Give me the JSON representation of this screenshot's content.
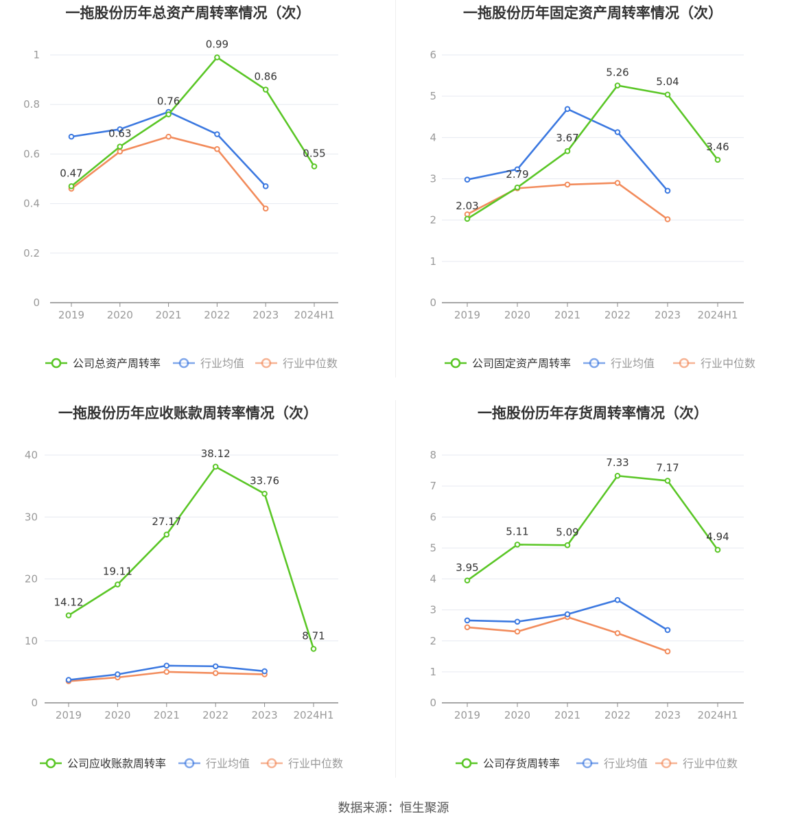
{
  "source": "数据来源：恒生聚源",
  "colors": {
    "company": "#5ac626",
    "avg": "#3b78e0",
    "median": "#f28b5b",
    "axis": "#888888",
    "grid": "#e6e9f0",
    "label": "#333333",
    "title": "#333333"
  },
  "legend_labels": {
    "avg": "行业均值",
    "median": "行业中位数"
  },
  "chart_data": [
    {
      "type": "line",
      "title": "一拖股份历年总资产周转率情况（次）",
      "categories": [
        "2019",
        "2020",
        "2021",
        "2022",
        "2023",
        "2024H1"
      ],
      "y_ticks": [
        "0",
        "0.2",
        "0.4",
        "0.6",
        "0.8",
        "1"
      ],
      "ylim": [
        0,
        1
      ],
      "series": [
        {
          "key": "company",
          "name": "公司总资产周转率",
          "values": [
            0.47,
            0.63,
            0.76,
            0.99,
            0.86,
            0.55
          ],
          "labels": [
            "0.47",
            "0.63",
            "0.76",
            "0.99",
            "0.86",
            "0.55"
          ]
        },
        {
          "key": "avg",
          "name": "行业均值",
          "values": [
            0.67,
            0.7,
            0.77,
            0.68,
            0.47,
            null
          ]
        },
        {
          "key": "median",
          "name": "行业中位数",
          "values": [
            0.46,
            0.61,
            0.67,
            0.62,
            0.38,
            null
          ]
        }
      ]
    },
    {
      "type": "line",
      "title": "一拖股份历年固定资产周转率情况（次）",
      "categories": [
        "2019",
        "2020",
        "2021",
        "2022",
        "2023",
        "2024H1"
      ],
      "y_ticks": [
        "0",
        "1",
        "2",
        "3",
        "4",
        "5",
        "6"
      ],
      "ylim": [
        0,
        6
      ],
      "series": [
        {
          "key": "company",
          "name": "公司固定资产周转率",
          "values": [
            2.03,
            2.79,
            3.67,
            5.26,
            5.04,
            3.46
          ],
          "labels": [
            "2.03",
            "2.79",
            "3.67",
            "5.26",
            "5.04",
            "3.46"
          ]
        },
        {
          "key": "avg",
          "name": "行业均值",
          "values": [
            2.98,
            3.23,
            4.69,
            4.13,
            2.71,
            null
          ]
        },
        {
          "key": "median",
          "name": "行业中位数",
          "values": [
            2.14,
            2.77,
            2.86,
            2.9,
            2.02,
            null
          ]
        }
      ]
    },
    {
      "type": "line",
      "title": "一拖股份历年应收账款周转率情况（次）",
      "categories": [
        "2019",
        "2020",
        "2021",
        "2022",
        "2023",
        "2024H1"
      ],
      "y_ticks": [
        "0",
        "10",
        "20",
        "30",
        "40"
      ],
      "ylim": [
        0,
        40
      ],
      "series": [
        {
          "key": "company",
          "name": "公司应收账款周转率",
          "values": [
            14.12,
            19.11,
            27.17,
            38.12,
            33.76,
            8.71
          ],
          "labels": [
            "14.12",
            "19.11",
            "27.17",
            "38.12",
            "33.76",
            "8.71"
          ]
        },
        {
          "key": "avg",
          "name": "行业均值",
          "values": [
            3.7,
            4.6,
            6.0,
            5.9,
            5.1,
            null
          ]
        },
        {
          "key": "median",
          "name": "行业中位数",
          "values": [
            3.5,
            4.1,
            5.0,
            4.8,
            4.6,
            null
          ]
        }
      ]
    },
    {
      "type": "line",
      "title": "一拖股份历年存货周转率情况（次）",
      "categories": [
        "2019",
        "2020",
        "2021",
        "2022",
        "2023",
        "2024H1"
      ],
      "y_ticks": [
        "0",
        "1",
        "2",
        "3",
        "4",
        "5",
        "6",
        "7",
        "8"
      ],
      "ylim": [
        0,
        8
      ],
      "series": [
        {
          "key": "company",
          "name": "公司存货周转率",
          "values": [
            3.95,
            5.11,
            5.09,
            7.33,
            7.17,
            4.94
          ],
          "labels": [
            "3.95",
            "5.11",
            "5.09",
            "7.33",
            "7.17",
            "4.94"
          ]
        },
        {
          "key": "avg",
          "name": "行业均值",
          "values": [
            2.66,
            2.62,
            2.86,
            3.32,
            2.35,
            null
          ]
        },
        {
          "key": "median",
          "name": "行业中位数",
          "values": [
            2.44,
            2.3,
            2.77,
            2.25,
            1.66,
            null
          ]
        }
      ]
    }
  ]
}
